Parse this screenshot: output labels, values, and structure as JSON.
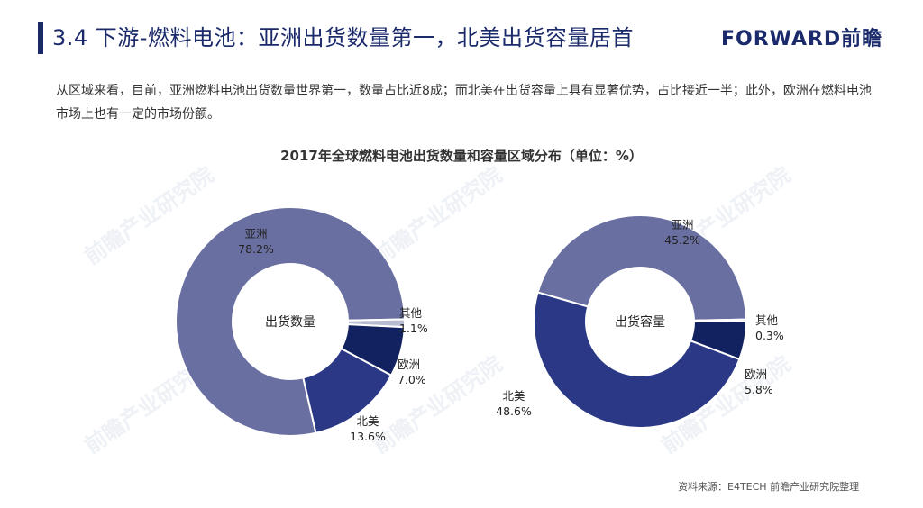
{
  "header": {
    "title": "3.4 下游-燃料电池：亚洲出货数量第一，北美出货容量居首",
    "logo_text": "FORWARD前瞻"
  },
  "intro": "从区域来看，目前，亚洲燃料电池出货数量世界第一，数量占比近8成；而北美在出货容量上具有显著优势，占比接近一半；此外，欧洲在燃料电池市场上也有一定的市场份额。",
  "watermark_text": "前瞻产业研究院",
  "source": "资料来源：E4TECH 前瞻产业研究院整理",
  "colors": {
    "title": "#1b2a6b",
    "asia": "#6a6fa1",
    "north_america": "#2b3885",
    "europe": "#12215f",
    "other": "#b8bcd2"
  },
  "chart_data": [
    {
      "type": "pie",
      "title": "2017年全球燃料电池出货数量和容量区域分布（单位：%）",
      "center_label": "出货数量",
      "unit": "%",
      "slices": [
        {
          "label": "亚洲",
          "value": 78.2,
          "value_text": "78.2%"
        },
        {
          "label": "其他",
          "value": 1.1,
          "value_text": "1.1%"
        },
        {
          "label": "欧洲",
          "value": 7.0,
          "value_text": "7.0%"
        },
        {
          "label": "北美",
          "value": 13.6,
          "value_text": "13.6%"
        }
      ]
    },
    {
      "type": "pie",
      "title": "2017年全球燃料电池出货数量和容量区域分布（单位：%）",
      "center_label": "出货容量",
      "unit": "%",
      "slices": [
        {
          "label": "亚洲",
          "value": 45.2,
          "value_text": "45.2%"
        },
        {
          "label": "其他",
          "value": 0.3,
          "value_text": "0.3%"
        },
        {
          "label": "欧洲",
          "value": 5.8,
          "value_text": "5.8%"
        },
        {
          "label": "北美",
          "value": 48.6,
          "value_text": "48.6%"
        }
      ]
    }
  ]
}
